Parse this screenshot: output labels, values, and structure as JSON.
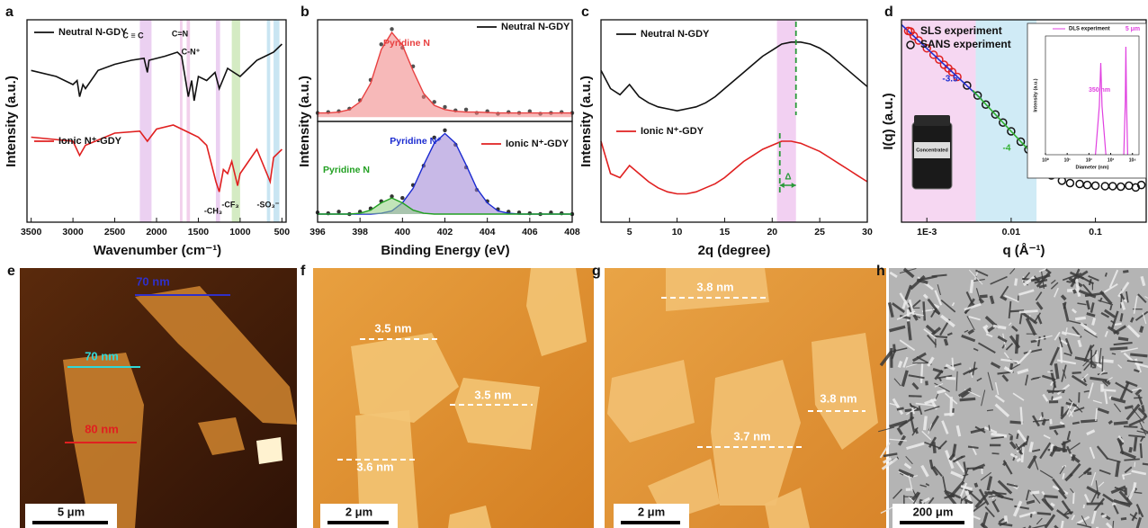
{
  "chart_data": [
    {
      "type": "line",
      "label": "a",
      "xlabel": "Wavenumber (cm⁻¹)",
      "ylabel": "Intensity (a.u.)",
      "xlim": [
        3550,
        450
      ],
      "xticks": [
        3500,
        3000,
        2500,
        2000,
        1500,
        1000,
        500
      ],
      "ylim": [
        0,
        100
      ],
      "bands": [
        {
          "range": [
            2200,
            2060
          ],
          "color": "#e8c8ee"
        },
        {
          "range": [
            1720,
            1690
          ],
          "color": "#f0c8e8"
        },
        {
          "range": [
            1640,
            1600
          ],
          "color": "#f0c8e8"
        },
        {
          "range": [
            1290,
            1240
          ],
          "color": "#e8c8ee"
        },
        {
          "range": [
            1100,
            1000
          ],
          "color": "#cde8b8"
        },
        {
          "range": [
            680,
            640
          ],
          "color": "#bfe0f0"
        },
        {
          "range": [
            600,
            530
          ],
          "color": "#bfe0f0"
        }
      ],
      "series": [
        {
          "name": "Neutral N-GDY",
          "color": "#111111",
          "x": [
            3500,
            3200,
            3000,
            2950,
            2920,
            2880,
            2850,
            2700,
            2500,
            2300,
            2150,
            2110,
            2090,
            1900,
            1750,
            1700,
            1620,
            1580,
            1550,
            1500,
            1400,
            1300,
            1250,
            1150,
            1000,
            900,
            800,
            700,
            600,
            500
          ],
          "values": [
            75,
            72,
            68,
            70,
            62,
            68,
            66,
            75,
            78,
            80,
            81,
            74,
            80,
            82,
            84,
            82,
            62,
            70,
            60,
            72,
            70,
            74,
            66,
            76,
            72,
            76,
            80,
            82,
            84,
            88
          ]
        },
        {
          "name": "Ionic N⁺-GDY",
          "color": "#e02020",
          "x": [
            3500,
            3000,
            2920,
            2850,
            2500,
            2200,
            2110,
            2000,
            1800,
            1700,
            1600,
            1500,
            1400,
            1290,
            1250,
            1200,
            1150,
            1100,
            1030,
            1000,
            900,
            800,
            640,
            600,
            500
          ],
          "values": [
            42,
            40,
            33,
            38,
            44,
            45,
            40,
            46,
            48,
            46,
            44,
            42,
            38,
            20,
            15,
            26,
            24,
            30,
            18,
            24,
            30,
            36,
            20,
            32,
            36
          ]
        }
      ],
      "annotations": [
        "C ≡ C",
        "C=N",
        "C-N⁺",
        "-CH₃",
        "-CF₃",
        "-SO₃⁻"
      ]
    },
    {
      "type": "line",
      "label": "b",
      "ylabel": "Intensity (a.u.)",
      "xlim": [
        396,
        408
      ],
      "ylim": [
        -5,
        115
      ],
      "x": [
        396,
        396.5,
        397,
        397.5,
        398,
        398.5,
        399,
        399.5,
        400,
        400.5,
        401,
        401.5,
        402,
        402.5,
        403,
        403.5,
        404,
        404.5,
        405,
        405.5,
        406,
        406.5,
        407,
        407.5,
        408
      ],
      "series": [
        {
          "name": "Neutral N-GDY",
          "style": "scatter",
          "color": "#111111",
          "marker_color": "#333333",
          "values": [
            5,
            6,
            7,
            10,
            20,
            44,
            86,
            104,
            82,
            60,
            24,
            18,
            12,
            8,
            9,
            5,
            7,
            4,
            6,
            5,
            7,
            4,
            5,
            6,
            5
          ]
        },
        {
          "name": "Pyridine N",
          "style": "area",
          "color": "#f08080",
          "line_color": "#e84040",
          "values": [
            5,
            5,
            6,
            9,
            18,
            40,
            80,
            100,
            85,
            55,
            28,
            14,
            9,
            7,
            6,
            6,
            5.5,
            5,
            5,
            5,
            5,
            5,
            5,
            5,
            5
          ]
        }
      ]
    },
    {
      "type": "line",
      "xlabel": "Binding Energy (eV)",
      "xlim": [
        396,
        408
      ],
      "xticks": [
        396,
        398,
        400,
        402,
        404,
        406,
        408
      ],
      "ylim": [
        -10,
        115
      ],
      "x": [
        396,
        396.5,
        397,
        397.5,
        398,
        398.5,
        399,
        399.5,
        400,
        400.5,
        401,
        401.5,
        402,
        402.5,
        403,
        403.5,
        404,
        404.5,
        405,
        405.5,
        406,
        406.5,
        407,
        407.5,
        408
      ],
      "series": [
        {
          "name": "Ionic N⁺-GDY",
          "style": "scatter",
          "color": "#e02020",
          "marker_color": "#111111",
          "values": [
            2,
            1,
            3,
            0,
            3,
            7,
            16,
            22,
            20,
            36,
            60,
            95,
            104,
            86,
            58,
            30,
            16,
            6,
            3,
            2,
            1,
            0,
            2,
            1,
            0
          ]
        },
        {
          "name": "Pyridine N⁺",
          "style": "area",
          "color": "#9b7fd4",
          "line_color": "#1a2ad0",
          "values": [
            0,
            0,
            0,
            0,
            0,
            0,
            1,
            4,
            14,
            32,
            61,
            88,
            100,
            88,
            61,
            32,
            14,
            4,
            1,
            0,
            0,
            0,
            0,
            0,
            0
          ]
        },
        {
          "name": "Pyridine N",
          "style": "area",
          "color": "#90d080",
          "line_color": "#22a022",
          "values": [
            0,
            0,
            0,
            0,
            1,
            5,
            14,
            20,
            14,
            5,
            1,
            0,
            0,
            0,
            0,
            0,
            0,
            0,
            0,
            0,
            0,
            0,
            0,
            0,
            0
          ]
        }
      ]
    },
    {
      "type": "line",
      "label": "c",
      "xlabel": "2q (degree)",
      "ylabel": "Intensity (a.u.)",
      "xlim": [
        2,
        30
      ],
      "xticks": [
        5,
        10,
        15,
        20,
        25,
        30
      ],
      "ylim": [
        0,
        100
      ],
      "bands": [
        {
          "range": [
            20.5,
            22.5
          ],
          "color": "#f0c8f0"
        }
      ],
      "markers": [
        22.5,
        20.8
      ],
      "marker_color": "#2a9a3a",
      "x": [
        2,
        3,
        4,
        5,
        6,
        7,
        8,
        9,
        10,
        11,
        12,
        13,
        14,
        15,
        16,
        17,
        18,
        19,
        20,
        21,
        22,
        23,
        24,
        25,
        26,
        27,
        28,
        29,
        30
      ],
      "series": [
        {
          "name": "Neutral N-GDY",
          "color": "#111111",
          "values": [
            75,
            66,
            63,
            68,
            62,
            59,
            57,
            56,
            55,
            56,
            57,
            59,
            62,
            66,
            70,
            74,
            78,
            82,
            85,
            88,
            89,
            89,
            88,
            86,
            83,
            79,
            75,
            71,
            67
          ]
        },
        {
          "name": "Ionic N⁺-GDY",
          "color": "#e02020",
          "values": [
            40,
            24,
            22,
            28,
            24,
            20,
            17,
            15,
            14,
            14,
            15,
            17,
            19,
            22,
            26,
            30,
            33,
            36,
            38,
            40,
            40,
            39,
            37,
            35,
            32,
            29,
            26,
            23,
            20
          ]
        }
      ],
      "annotations": [
        "Δ"
      ]
    },
    {
      "type": "scatter",
      "label": "d",
      "xlabel": "q (Å⁻¹)",
      "ylabel": "I(q) (a.u.)",
      "xscale": "log",
      "yscale": "log",
      "xlim": [
        0.0005,
        0.4
      ],
      "xticks": [
        {
          "value": 0.001,
          "label": "1E-3"
        },
        0.01,
        0.1
      ],
      "ylim": [
        100,
        100000000000
      ],
      "bands": [
        {
          "range": [
            0.0005,
            0.0038
          ],
          "color": "#f4d0f0"
        },
        {
          "range": [
            0.0038,
            0.02
          ],
          "color": "#c8e8f4"
        }
      ],
      "series": [
        {
          "name": "SLS experiment",
          "style": "scatter",
          "hollow": true,
          "color": "#e02020",
          "x": [
            0.0006,
            0.0007,
            0.0008,
            0.001,
            0.0012,
            0.0014,
            0.0016,
            0.0018,
            0.002,
            0.0023
          ],
          "values": [
            32000000000.0,
            19000000000.0,
            12000000000.0,
            5400000000.0,
            2800000000.0,
            1700000000.0,
            1000000000.0,
            690000000.0,
            480000000.0,
            290000000.0
          ]
        },
        {
          "name": "SANS experiment",
          "style": "scatter",
          "hollow": true,
          "color": "#111111",
          "x": [
            0.003,
            0.004,
            0.005,
            0.0065,
            0.008,
            0.01,
            0.013,
            0.016,
            0.02,
            0.025,
            0.03,
            0.04,
            0.05,
            0.065,
            0.08,
            0.1,
            0.13,
            0.16,
            0.2,
            0.25,
            0.3,
            0.35
          ],
          "values": [
            120000000.0,
            43000000.0,
            17000000.0,
            6200000.0,
            2700000.0,
            1100000.0,
            380000.0,
            170000.0,
            69000.0,
            28000.0,
            12000.0,
            7000,
            5500,
            5000,
            4500,
            4200,
            4000,
            4000,
            3800,
            4200,
            3500,
            4500
          ]
        },
        {
          "style": "line",
          "color": "#2030d0",
          "x": [
            0.0005,
            0.0045
          ],
          "values": [
            60000000000.0,
            28000000.0
          ]
        },
        {
          "style": "line",
          "color": "#30b030",
          "x": [
            0.0035,
            0.032
          ],
          "values": [
            73000000.0,
            10500
          ]
        }
      ],
      "annotations": [
        "-3.5",
        "-4"
      ],
      "vial_label": "Concentrated",
      "inset": {
        "title": "DLS experiment",
        "xlabel": "Diameter (nm)",
        "ylabel": "Intensity (a.u.)",
        "xscale": "log",
        "xlim": [
          1,
          20000
        ],
        "xticks": [
          {
            "value": 1,
            "label": "10⁰"
          },
          {
            "value": 10,
            "label": "10¹"
          },
          {
            "value": 100,
            "label": "10²"
          },
          {
            "value": 1000,
            "label": "10³"
          },
          {
            "value": 10000,
            "label": "10⁴"
          }
        ],
        "ylim": [
          0,
          110
        ],
        "series": [
          {
            "color": "#e040e0",
            "x": [
              200,
              300,
              350,
              400,
              600
            ],
            "values": [
              0,
              45,
              85,
              45,
              0
            ]
          },
          {
            "color": "#e040e0",
            "x": [
              4000,
              4700,
              5000,
              5300,
              6000
            ],
            "values": [
              0,
              50,
              100,
              50,
              0
            ]
          }
        ],
        "annotations": [
          "350 nm",
          "5 μm"
        ]
      }
    }
  ],
  "images": [
    {
      "label": "e",
      "scale_bar": "5 μm",
      "annotations": [
        "70 nm",
        "70 nm",
        "80 nm"
      ]
    },
    {
      "label": "f",
      "scale_bar": "2 μm",
      "annotations": [
        "3.5 nm",
        "3.5 nm",
        "3.6 nm"
      ]
    },
    {
      "label": "g",
      "scale_bar": "2 μm",
      "annotations": [
        "3.8 nm",
        "3.8 nm",
        "3.7 nm"
      ]
    },
    {
      "label": "h",
      "scale_bar": "200 μm"
    }
  ]
}
